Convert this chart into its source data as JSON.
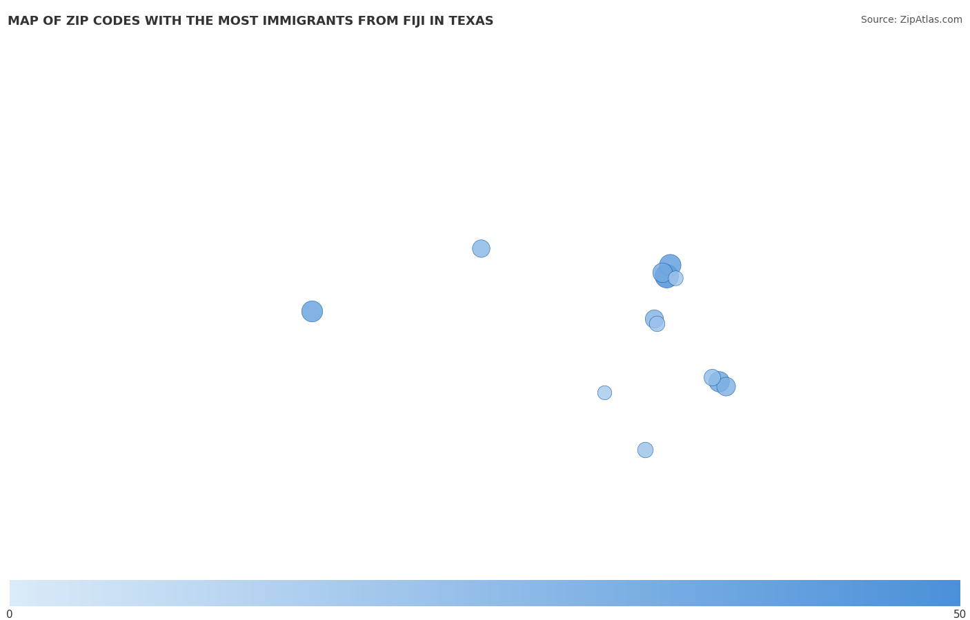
{
  "title": "MAP OF ZIP CODES WITH THE MOST IMMIGRANTS FROM FIJI IN TEXAS",
  "source": "Source: ZipAtlas.com",
  "colorbar_min": 0,
  "colorbar_max": 50,
  "title_fontsize": 13,
  "source_fontsize": 10,
  "figsize": [
    14.06,
    8.99
  ],
  "dpi": 100,
  "extent": [
    -115.0,
    -88.5,
    24.5,
    40.0
  ],
  "dots": [
    {
      "lon": -101.87,
      "lat": 33.57,
      "value": 28
    },
    {
      "lon": -106.48,
      "lat": 31.77,
      "value": 40
    },
    {
      "lon": -96.8,
      "lat": 32.78,
      "value": 50
    },
    {
      "lon": -96.7,
      "lat": 33.1,
      "value": 42
    },
    {
      "lon": -96.9,
      "lat": 32.88,
      "value": 35
    },
    {
      "lon": -96.55,
      "lat": 32.72,
      "value": 20
    },
    {
      "lon": -97.14,
      "lat": 31.55,
      "value": 30
    },
    {
      "lon": -97.05,
      "lat": 31.42,
      "value": 22
    },
    {
      "lon": -98.49,
      "lat": 29.43,
      "value": 18
    },
    {
      "lon": -95.37,
      "lat": 29.76,
      "value": 38
    },
    {
      "lon": -95.18,
      "lat": 29.62,
      "value": 32
    },
    {
      "lon": -95.55,
      "lat": 29.88,
      "value": 25
    },
    {
      "lon": -97.38,
      "lat": 27.8,
      "value": 22
    }
  ],
  "dot_color_low": "#c6ddf0",
  "dot_color_high": "#1a5fa0",
  "dot_alpha": 0.82,
  "dot_max_size": 3000,
  "colorbar_color_low": "#daeaf8",
  "colorbar_color_high": "#4a90d9",
  "texas_fill": "#dce9f5",
  "texas_border": "#9abdd4",
  "land_color": "#f5f5f5",
  "ocean_color": "#cfe4ef",
  "state_border_color": "#c8d8e4",
  "country_border_color": "#b0c0cc"
}
